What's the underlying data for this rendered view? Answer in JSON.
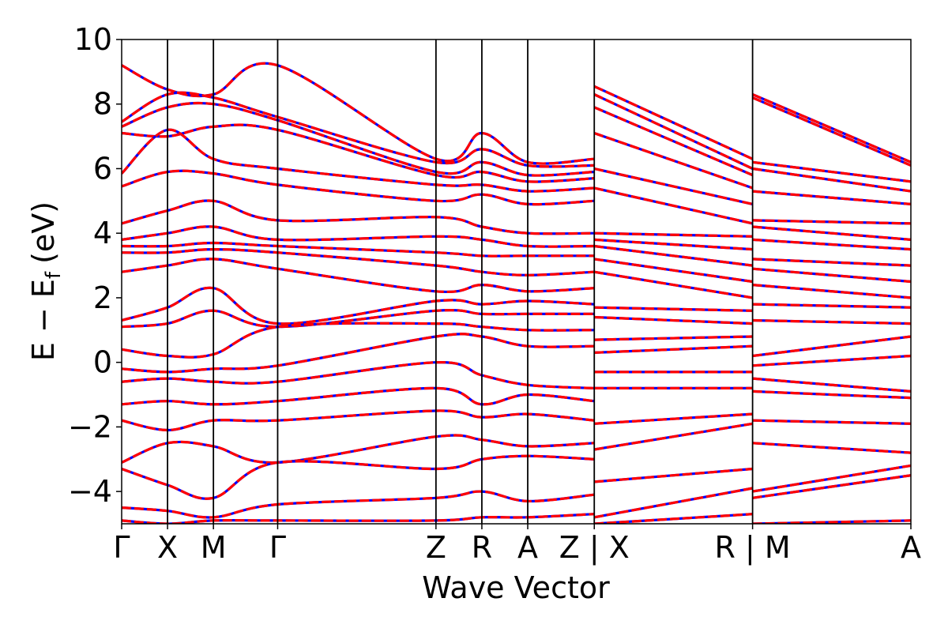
{
  "chart_data": {
    "type": "line",
    "title": "",
    "xlabel": "Wave Vector",
    "ylabel": "E − E",
    "ylabel_subscript": "f",
    "ylabel_unit": "(eV)",
    "ylim": [
      -5,
      10
    ],
    "yticks": [
      -4,
      -2,
      0,
      2,
      4,
      6,
      8,
      10
    ],
    "ytick_labels": [
      "−4",
      "−2",
      "0",
      "2",
      "4",
      "6",
      "8",
      "10"
    ],
    "xlim": [
      0,
      17.2
    ],
    "xticks": [
      {
        "pos": 0.0,
        "label": "Γ"
      },
      {
        "pos": 1.0,
        "label": "X"
      },
      {
        "pos": 2.0,
        "label": "M"
      },
      {
        "pos": 3.4,
        "label": "Γ"
      },
      {
        "pos": 6.85,
        "label": "Z"
      },
      {
        "pos": 7.85,
        "label": "R"
      },
      {
        "pos": 8.85,
        "label": "A"
      },
      {
        "pos": 10.3,
        "label": "Z | X"
      },
      {
        "pos": 13.75,
        "label": "R | M"
      },
      {
        "pos": 17.2,
        "label": "A"
      }
    ],
    "grid": false,
    "series": [
      {
        "color": "#0000ff",
        "style": "solid"
      },
      {
        "color": "#ff0000",
        "style": "dashed"
      }
    ],
    "bands_at_kpoints": [
      [
        9.2,
        8.45,
        8.3,
        9.2,
        6.3,
        7.1,
        6.2,
        6.3,
        8.55,
        6.3,
        8.3,
        6.2
      ],
      [
        7.45,
        8.3,
        8.2,
        7.6,
        6.2,
        6.6,
        6.1,
        6.1,
        8.3,
        6.0,
        8.2,
        6.1
      ],
      [
        7.3,
        7.9,
        8.0,
        7.5,
        5.9,
        6.2,
        5.8,
        5.9,
        7.9,
        5.8,
        6.2,
        5.6
      ],
      [
        7.1,
        7.0,
        7.3,
        7.2,
        5.8,
        5.9,
        5.6,
        5.7,
        7.1,
        5.4,
        6.0,
        5.3
      ],
      [
        5.85,
        7.2,
        6.3,
        6.0,
        5.5,
        5.5,
        5.3,
        5.4,
        6.0,
        4.9,
        5.3,
        4.9
      ],
      [
        5.45,
        5.9,
        5.85,
        5.5,
        5.0,
        5.2,
        4.9,
        5.0,
        5.4,
        4.3,
        4.4,
        4.3
      ],
      [
        4.3,
        4.7,
        5.0,
        4.4,
        4.5,
        4.2,
        4.0,
        4.0,
        4.0,
        3.9,
        4.2,
        3.8
      ],
      [
        3.8,
        4.0,
        4.2,
        3.8,
        3.9,
        3.8,
        3.6,
        3.6,
        3.8,
        3.5,
        3.8,
        3.5
      ],
      [
        3.6,
        3.6,
        3.7,
        3.6,
        3.4,
        3.3,
        3.3,
        3.3,
        3.6,
        3.0,
        3.2,
        3.0
      ],
      [
        3.4,
        3.4,
        3.5,
        3.4,
        3.0,
        2.8,
        2.7,
        2.8,
        3.2,
        2.5,
        2.9,
        2.5
      ],
      [
        2.8,
        3.0,
        3.2,
        2.9,
        2.2,
        2.4,
        2.2,
        2.3,
        2.8,
        2.0,
        2.4,
        2.0
      ],
      [
        1.3,
        1.7,
        2.3,
        1.2,
        1.9,
        1.8,
        1.9,
        1.8,
        1.7,
        1.6,
        1.8,
        1.7
      ],
      [
        1.1,
        1.2,
        1.6,
        1.1,
        1.6,
        1.5,
        1.5,
        1.5,
        1.4,
        1.2,
        1.3,
        1.2
      ],
      [
        0.4,
        0.2,
        0.25,
        1.1,
        1.2,
        1.1,
        1.0,
        1.0,
        0.7,
        0.8,
        0.2,
        0.8
      ],
      [
        -0.2,
        -0.3,
        -0.2,
        -0.1,
        0.8,
        0.8,
        0.5,
        0.5,
        0.3,
        0.5,
        -0.1,
        0.2
      ],
      [
        -0.6,
        -0.5,
        -0.6,
        -0.6,
        0.0,
        -0.4,
        -0.7,
        -0.8,
        -0.3,
        -0.3,
        -0.5,
        -0.9
      ],
      [
        -1.3,
        -1.2,
        -1.3,
        -1.2,
        -0.8,
        -1.3,
        -1.0,
        -1.2,
        -0.8,
        -0.8,
        -0.9,
        -1.1
      ],
      [
        -1.8,
        -2.1,
        -1.8,
        -1.8,
        -1.5,
        -1.7,
        -1.6,
        -1.8,
        -1.9,
        -1.6,
        -1.8,
        -1.9
      ],
      [
        -3.1,
        -2.5,
        -2.6,
        -3.1,
        -2.3,
        -2.4,
        -2.6,
        -2.5,
        -2.7,
        -1.9,
        -2.5,
        -2.8
      ],
      [
        -3.3,
        -3.8,
        -4.2,
        -3.1,
        -3.3,
        -3.0,
        -2.9,
        -3.0,
        -3.7,
        -3.3,
        -4.0,
        -3.2
      ],
      [
        -4.5,
        -4.6,
        -4.8,
        -4.4,
        -4.2,
        -4.0,
        -4.3,
        -4.1,
        -4.8,
        -3.9,
        -4.2,
        -3.5
      ],
      [
        -4.9,
        -5.0,
        -4.9,
        -4.9,
        -4.9,
        -4.8,
        -4.8,
        -4.7,
        -5.0,
        -4.7,
        -5.0,
        -4.9
      ]
    ]
  }
}
